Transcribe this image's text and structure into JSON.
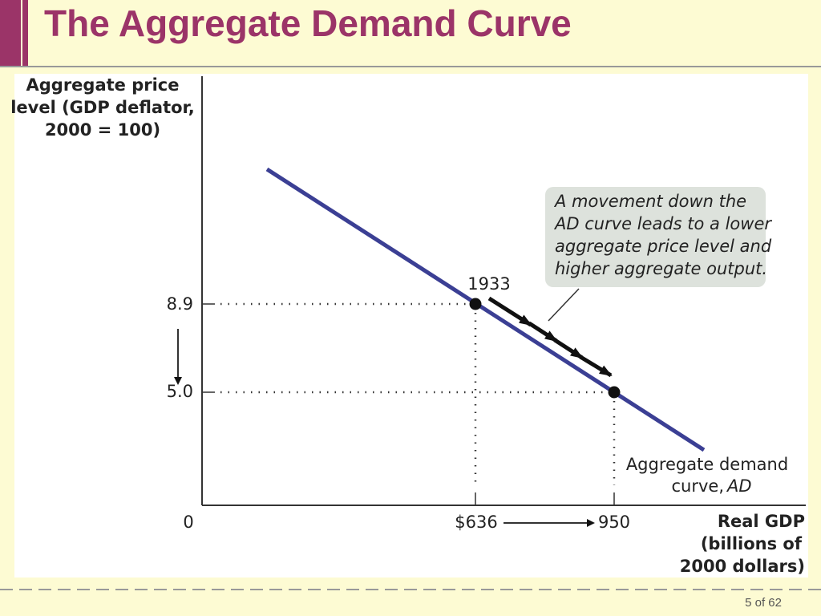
{
  "slide": {
    "title": "The Aggregate Demand Curve",
    "footer": "5 of 62"
  },
  "figure": {
    "y_axis_label": [
      "Aggregate price",
      "level (GDP deflator,",
      "2000 = 100)"
    ],
    "x_axis_label": [
      "Real GDP",
      "(billions of",
      "2000 dollars)"
    ],
    "origin": "0",
    "y_ticks": [
      "8.9",
      "5.0"
    ],
    "x_ticks": [
      "$636",
      "950"
    ],
    "point_label": "1933",
    "callout": [
      "A movement down the",
      "AD curve leads to a lower",
      "aggregate price level and",
      "higher aggregate output."
    ],
    "curve_label": {
      "lines": [
        "Aggregate demand",
        "curve,"
      ],
      "italic": "AD"
    }
  }
}
